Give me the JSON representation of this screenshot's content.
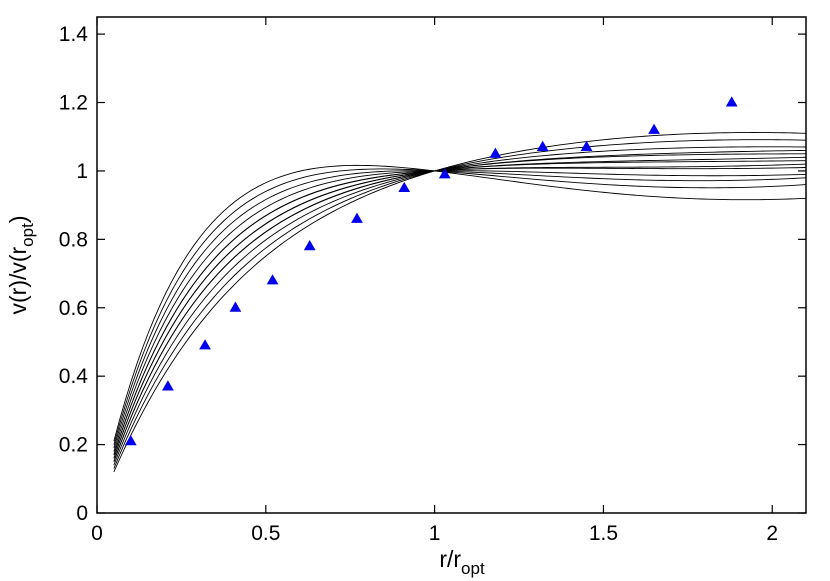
{
  "chart_data": {
    "type": "line",
    "title": "",
    "xlabel": {
      "main": "r/r",
      "sub": "opt"
    },
    "ylabel": {
      "pre": "v(r)/v(r",
      "sub": "opt",
      "post": ")"
    },
    "xlim": [
      0,
      2.1
    ],
    "ylim": [
      0,
      1.45
    ],
    "xticks": [
      0,
      0.5,
      1,
      1.5,
      2
    ],
    "xtick_labels": [
      "0",
      "0.5",
      "1",
      "1.5",
      "2"
    ],
    "yticks": [
      0,
      0.2,
      0.4,
      0.6,
      0.8,
      1,
      1.2,
      1.4
    ],
    "ytick_labels": [
      "0",
      "0.2",
      "0.4",
      "0.6",
      "0.8",
      "1",
      "1.2",
      "1.4"
    ],
    "grid": false,
    "legend": "none",
    "marker_color": "#0000ee",
    "line_color": "#000000",
    "points": {
      "marker": "triangle",
      "x": [
        0.1,
        0.21,
        0.32,
        0.41,
        0.52,
        0.63,
        0.77,
        0.91,
        1.03,
        1.18,
        1.32,
        1.45,
        1.65,
        1.88
      ],
      "y": [
        0.21,
        0.37,
        0.49,
        0.6,
        0.68,
        0.78,
        0.86,
        0.95,
        0.99,
        1.05,
        1.07,
        1.07,
        1.12,
        1.2
      ]
    },
    "curves": {
      "x_range": [
        0.05,
        2.1
      ],
      "normalized_at_x": 1,
      "series": [
        {
          "value_at_x_0_05": 0.12,
          "value_at_x_2_1": 1.11
        },
        {
          "value_at_x_0_05": 0.13,
          "value_at_x_2_1": 1.09
        },
        {
          "value_at_x_0_05": 0.14,
          "value_at_x_2_1": 1.07
        },
        {
          "value_at_x_0_05": 0.15,
          "value_at_x_2_1": 1.06
        },
        {
          "value_at_x_0_05": 0.15,
          "value_at_x_2_1": 1.05
        },
        {
          "value_at_x_0_05": 0.16,
          "value_at_x_2_1": 1.04
        },
        {
          "value_at_x_0_05": 0.16,
          "value_at_x_2_1": 1.03
        },
        {
          "value_at_x_0_05": 0.17,
          "value_at_x_2_1": 1.02
        },
        {
          "value_at_x_0_05": 0.17,
          "value_at_x_2_1": 1.01
        },
        {
          "value_at_x_0_05": 0.18,
          "value_at_x_2_1": 0.99
        },
        {
          "value_at_x_0_05": 0.19,
          "value_at_x_2_1": 0.98
        },
        {
          "value_at_x_0_05": 0.2,
          "value_at_x_2_1": 0.96
        },
        {
          "value_at_x_0_05": 0.21,
          "value_at_x_2_1": 0.92
        }
      ]
    }
  }
}
